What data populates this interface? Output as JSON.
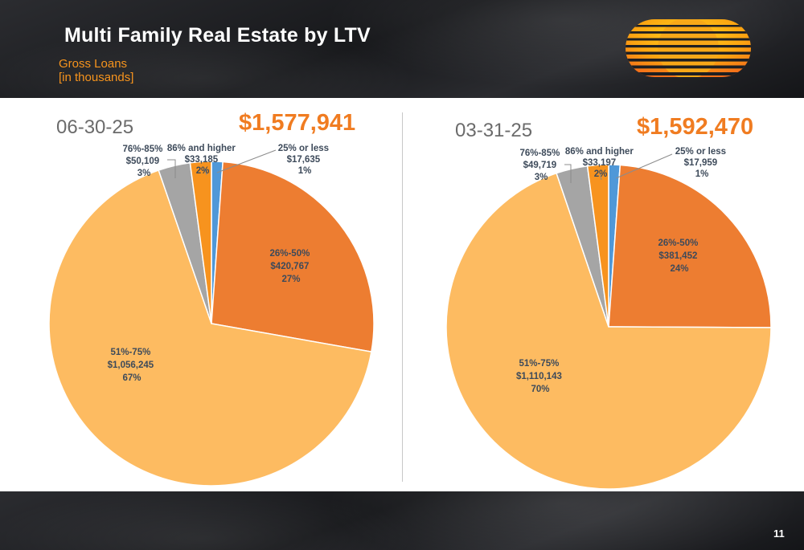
{
  "slide": {
    "title": "Multi Family Real Estate by LTV",
    "subtitle_line1": "Gross Loans",
    "subtitle_line2": "[in thousands]",
    "page_number": "11"
  },
  "colors": {
    "25% or less": "#4f98d8",
    "26%-50%": "#ed7d31",
    "51%-75%": "#fdbb61",
    "76%-85%": "#a5a5a5",
    "86% and higher": "#f7931e"
  },
  "chart_data": [
    {
      "type": "pie",
      "title": "06-30-25",
      "total": "$1,577,941",
      "slices": [
        {
          "label": "25% or less",
          "value": 17635,
          "value_text": "$17,635",
          "percent_text": "1%"
        },
        {
          "label": "26%-50%",
          "value": 420767,
          "value_text": "$420,767",
          "percent_text": "27%"
        },
        {
          "label": "51%-75%",
          "value": 1056245,
          "value_text": "$1,056,245",
          "percent_text": "67%"
        },
        {
          "label": "76%-85%",
          "value": 50109,
          "value_text": "$50,109",
          "percent_text": "3%"
        },
        {
          "label": "86% and higher",
          "value": 33185,
          "value_text": "$33,185",
          "percent_text": "2%"
        }
      ]
    },
    {
      "type": "pie",
      "title": "03-31-25",
      "total": "$1,592,470",
      "slices": [
        {
          "label": "25% or less",
          "value": 17959,
          "value_text": "$17,959",
          "percent_text": "1%"
        },
        {
          "label": "26%-50%",
          "value": 381452,
          "value_text": "$381,452",
          "percent_text": "24%"
        },
        {
          "label": "51%-75%",
          "value": 1110143,
          "value_text": "$1,110,143",
          "percent_text": "70%"
        },
        {
          "label": "76%-85%",
          "value": 49719,
          "value_text": "$49,719",
          "percent_text": "3%"
        },
        {
          "label": "86% and higher",
          "value": 33197,
          "value_text": "$33,197",
          "percent_text": "2%"
        }
      ]
    }
  ]
}
